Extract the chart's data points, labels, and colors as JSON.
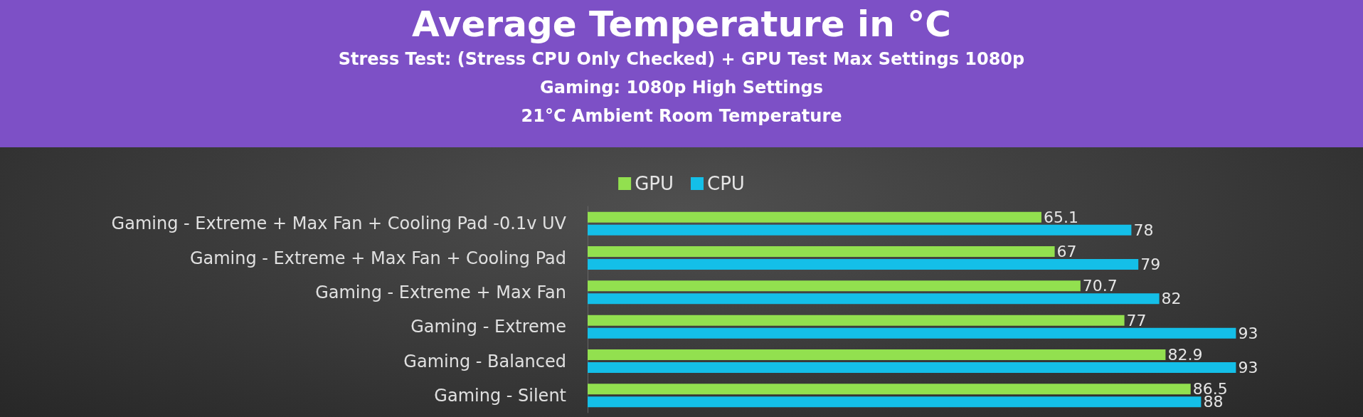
{
  "chart_data": {
    "type": "bar",
    "orientation": "horizontal",
    "title": "Average Temperature in °C",
    "subtitle": "Stress Test: (Stress CPU Only Checked) + GPU Test Max Settings 1080p\nGaming: 1080p High Settings\n21°C Ambient Room Temperature",
    "categories": [
      "Gaming - Extreme + Max Fan + Cooling Pad -0.1v UV",
      "Gaming - Extreme + Max Fan + Cooling Pad",
      "Gaming - Extreme + Max Fan",
      "Gaming - Extreme",
      "Gaming - Balanced",
      "Gaming - Silent"
    ],
    "series": [
      {
        "name": "GPU",
        "color": "#92e04f",
        "values": [
          65.1,
          67,
          70.7,
          77,
          82.9,
          86.5
        ]
      },
      {
        "name": "CPU",
        "color": "#14bfe8",
        "values": [
          78,
          79,
          82,
          93,
          93,
          88
        ]
      }
    ],
    "data_labels": true,
    "legend": "top"
  }
}
